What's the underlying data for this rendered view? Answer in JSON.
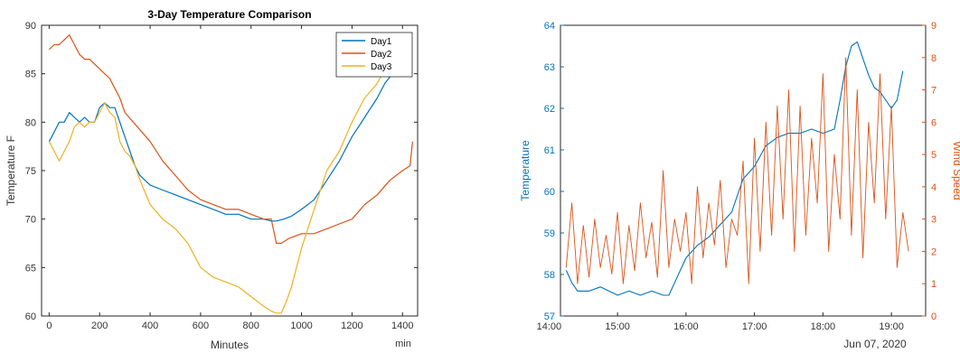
{
  "chart_data": [
    {
      "type": "line",
      "title": "3-Day Temperature Comparison",
      "xlabel": "Minutes",
      "x_unit": "min",
      "ylabel": "Temperature F",
      "xlim": [
        -30,
        1460
      ],
      "ylim": [
        60,
        90
      ],
      "xticks": [
        "0",
        "200",
        "400",
        "600",
        "800",
        "1000",
        "1200",
        "1400"
      ],
      "yticks": [
        "60",
        "65",
        "70",
        "75",
        "80",
        "85",
        "90"
      ],
      "legend_position": "top-right",
      "series": [
        {
          "name": "Day1",
          "color": "#0072BD",
          "x": [
            0,
            20,
            40,
            60,
            80,
            100,
            120,
            140,
            160,
            180,
            200,
            220,
            240,
            260,
            280,
            300,
            320,
            340,
            360,
            380,
            400,
            450,
            500,
            550,
            600,
            650,
            700,
            750,
            800,
            850,
            880,
            900,
            930,
            960,
            1000,
            1050,
            1100,
            1150,
            1200,
            1250,
            1300,
            1330,
            1360
          ],
          "values": [
            78,
            79,
            80,
            80,
            81,
            80.5,
            80,
            80.5,
            80,
            80,
            81.5,
            82,
            81.5,
            81.5,
            80,
            78.5,
            77,
            75.5,
            74.5,
            74,
            73.5,
            73,
            72.5,
            72,
            71.5,
            71,
            70.5,
            70.5,
            70,
            70,
            69.8,
            69.8,
            70,
            70.3,
            71,
            72,
            74,
            76,
            78.5,
            80.5,
            82.5,
            84,
            85
          ]
        },
        {
          "name": "Day2",
          "color": "#D95319",
          "x": [
            0,
            20,
            40,
            60,
            80,
            100,
            120,
            140,
            160,
            180,
            200,
            220,
            240,
            260,
            280,
            300,
            350,
            400,
            450,
            500,
            550,
            600,
            650,
            700,
            750,
            800,
            850,
            880,
            900,
            920,
            950,
            1000,
            1050,
            1100,
            1150,
            1200,
            1250,
            1300,
            1350,
            1400,
            1430,
            1440
          ],
          "values": [
            87.5,
            88,
            88,
            88.5,
            89,
            88,
            87,
            86.5,
            86.5,
            86,
            85.5,
            85,
            84.5,
            83.5,
            82.5,
            81,
            79.5,
            78,
            76,
            74.5,
            73,
            72,
            71.5,
            71,
            71,
            70.5,
            70,
            70,
            67.5,
            67.5,
            68,
            68.5,
            68.5,
            69,
            69.5,
            70,
            71.5,
            72.5,
            74,
            75,
            75.5,
            78
          ]
        },
        {
          "name": "Day3",
          "color": "#EDB120",
          "x": [
            0,
            20,
            40,
            60,
            80,
            100,
            120,
            140,
            160,
            180,
            200,
            220,
            240,
            260,
            280,
            300,
            320,
            340,
            360,
            400,
            450,
            500,
            550,
            600,
            650,
            700,
            750,
            800,
            850,
            880,
            900,
            920,
            940,
            960,
            980,
            1000,
            1050,
            1100,
            1150,
            1200,
            1250,
            1300,
            1320
          ],
          "values": [
            78,
            77,
            76,
            77,
            78,
            79.5,
            80,
            79.5,
            80,
            80,
            81,
            82,
            81,
            80.5,
            78,
            77,
            76.5,
            75.5,
            74,
            71.5,
            70,
            69,
            67.5,
            65,
            64,
            63.5,
            63,
            62,
            61,
            60.5,
            60.3,
            60.3,
            61.5,
            63,
            65,
            67,
            71,
            75,
            77,
            80,
            82.5,
            84,
            85
          ]
        }
      ]
    },
    {
      "type": "line",
      "title": "",
      "xlabel": "Jun 07, 2020",
      "xlim": [
        "14:10",
        "19:30"
      ],
      "xticks": [
        "14:00",
        "15:00",
        "16:00",
        "17:00",
        "18:00",
        "19:00"
      ],
      "ylabel": "Temperature",
      "ylim": [
        57,
        64
      ],
      "yticks": [
        "57",
        "58",
        "59",
        "60",
        "61",
        "62",
        "63",
        "64"
      ],
      "y2label": "Wind Speed",
      "y2lim": [
        0,
        9
      ],
      "y2ticks": [
        "0",
        "1",
        "2",
        "3",
        "4",
        "5",
        "6",
        "7",
        "8",
        "9"
      ],
      "left_axis_color": "#0072BD",
      "right_axis_color": "#D95319",
      "series": [
        {
          "axis": "left",
          "color": "#0072BD",
          "x": [
            "14:15",
            "14:20",
            "14:25",
            "14:30",
            "14:35",
            "14:45",
            "15:00",
            "15:10",
            "15:20",
            "15:30",
            "15:40",
            "15:45",
            "15:50",
            "16:00",
            "16:10",
            "16:20",
            "16:30",
            "16:40",
            "16:50",
            "17:00",
            "17:10",
            "17:20",
            "17:30",
            "17:40",
            "17:50",
            "18:00",
            "18:10",
            "18:15",
            "18:20",
            "18:25",
            "18:30",
            "18:35",
            "18:40",
            "18:45",
            "18:50",
            "19:00",
            "19:05",
            "19:10"
          ],
          "values": [
            58.1,
            57.8,
            57.6,
            57.6,
            57.6,
            57.7,
            57.5,
            57.6,
            57.5,
            57.6,
            57.5,
            57.5,
            57.8,
            58.4,
            58.7,
            58.9,
            59.2,
            59.5,
            60.3,
            60.6,
            61.1,
            61.3,
            61.4,
            61.4,
            61.5,
            61.4,
            61.5,
            62.2,
            63.0,
            63.5,
            63.6,
            63.2,
            62.8,
            62.5,
            62.4,
            62.0,
            62.2,
            62.9
          ]
        },
        {
          "axis": "right",
          "color": "#D95319",
          "x": [
            "14:15",
            "14:20",
            "14:25",
            "14:30",
            "14:35",
            "14:40",
            "14:45",
            "14:50",
            "14:55",
            "15:00",
            "15:05",
            "15:10",
            "15:15",
            "15:20",
            "15:25",
            "15:30",
            "15:35",
            "15:40",
            "15:45",
            "15:50",
            "15:55",
            "16:00",
            "16:05",
            "16:10",
            "16:15",
            "16:20",
            "16:25",
            "16:30",
            "16:35",
            "16:40",
            "16:45",
            "16:50",
            "16:55",
            "17:00",
            "17:05",
            "17:10",
            "17:15",
            "17:20",
            "17:25",
            "17:30",
            "17:35",
            "17:40",
            "17:45",
            "17:50",
            "17:55",
            "18:00",
            "18:05",
            "18:10",
            "18:15",
            "18:20",
            "18:25",
            "18:30",
            "18:35",
            "18:40",
            "18:45",
            "18:50",
            "18:55",
            "19:00",
            "19:05",
            "19:10",
            "19:15"
          ],
          "values": [
            1.5,
            3.5,
            1.0,
            2.8,
            1.2,
            3.0,
            1.5,
            2.5,
            1.3,
            3.2,
            1.0,
            2.8,
            1.4,
            3.5,
            1.8,
            2.9,
            1.2,
            4.5,
            1.5,
            3.0,
            2.0,
            3.2,
            1.0,
            4.0,
            1.8,
            3.5,
            2.2,
            4.2,
            1.5,
            3.0,
            2.5,
            4.8,
            1.0,
            5.5,
            2.0,
            6.0,
            2.5,
            6.5,
            3.0,
            7.0,
            2.0,
            6.5,
            2.5,
            5.5,
            3.5,
            7.5,
            2.0,
            5.0,
            3.0,
            8.0,
            2.5,
            7.0,
            1.8,
            6.0,
            3.5,
            7.5,
            3.0,
            6.5,
            1.5,
            3.2,
            2.0
          ]
        }
      ]
    }
  ]
}
